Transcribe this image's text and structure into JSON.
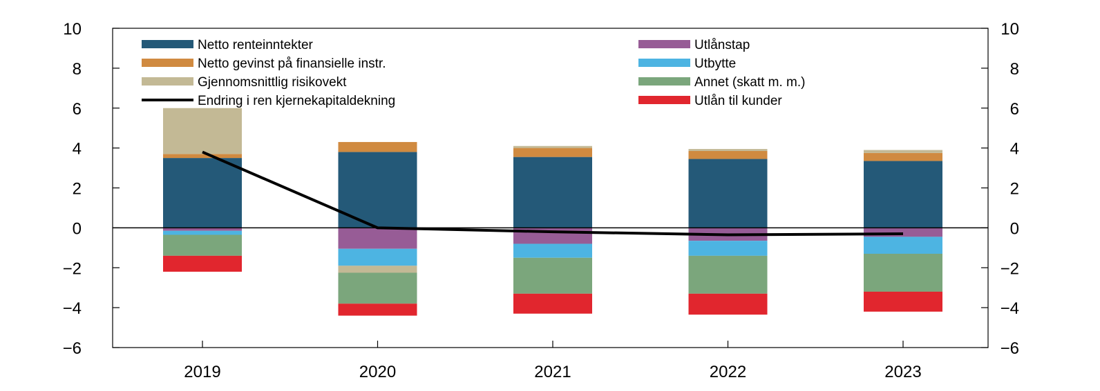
{
  "chart_data": {
    "type": "bar",
    "stacked": true,
    "categories": [
      "2019",
      "2020",
      "2021",
      "2022",
      "2023"
    ],
    "ylim": [
      -6,
      10
    ],
    "yticks": [
      -6,
      -4,
      -2,
      0,
      2,
      4,
      6,
      8,
      10
    ],
    "ytick_labels": [
      "−6",
      "−4",
      "−2",
      "0",
      "2",
      "4",
      "6",
      "8",
      "10"
    ],
    "secondary_y_axis": true,
    "grid": false,
    "legend_position": "top",
    "series": [
      {
        "name": "Netto renteinntekter",
        "color": "#245978",
        "values": [
          3.5,
          3.8,
          3.55,
          3.45,
          3.35
        ]
      },
      {
        "name": "Netto gevinst på finansielle instr.",
        "color": "#d08a40",
        "values": [
          0.2,
          0.5,
          0.45,
          0.4,
          0.4
        ]
      },
      {
        "name": "Gjennomsnittlig risikovekt",
        "color": "#c3b995",
        "values": [
          2.3,
          0.0,
          0.1,
          0.1,
          0.15
        ]
      },
      {
        "name": "Utlånstap",
        "color": "#975c96",
        "values": [
          -0.15,
          -1.05,
          -0.8,
          -0.65,
          -0.45
        ]
      },
      {
        "name": "Utbytte",
        "color": "#4db4e2",
        "values": [
          -0.2,
          -0.85,
          -0.7,
          -0.75,
          -0.85
        ]
      },
      {
        "name": "Gjennomsnittlig risikovekt (negativ)",
        "color": "#c3b995",
        "values": [
          0.0,
          -0.35,
          0.0,
          0.0,
          0.0
        ],
        "legend": false
      },
      {
        "name": "Annet (skatt m. m.)",
        "color": "#7ba67c",
        "values": [
          -1.05,
          -1.55,
          -1.8,
          -1.9,
          -1.9
        ]
      },
      {
        "name": "Utlån til kunder",
        "color": "#e1262e",
        "values": [
          -0.8,
          -0.6,
          -1.0,
          -1.05,
          -1.0
        ]
      }
    ],
    "line": {
      "name": "Endring i ren kjernekapitaldekning",
      "color": "#000000",
      "values": [
        3.8,
        0.0,
        -0.2,
        -0.35,
        -0.3
      ]
    },
    "legend": [
      {
        "label": "Netto renteinntekter",
        "color": "#245978",
        "kind": "bar"
      },
      {
        "label": "Netto gevinst på finansielle instr.",
        "color": "#d08a40",
        "kind": "bar"
      },
      {
        "label": "Gjennomsnittlig risikovekt",
        "color": "#c3b995",
        "kind": "bar"
      },
      {
        "label": "Endring i ren kjernekapitaldekning",
        "color": "#000000",
        "kind": "line"
      },
      {
        "label": "Utlånstap",
        "color": "#975c96",
        "kind": "bar"
      },
      {
        "label": "Utbytte",
        "color": "#4db4e2",
        "kind": "bar"
      },
      {
        "label": "Annet (skatt m. m.)",
        "color": "#7ba67c",
        "kind": "bar"
      },
      {
        "label": "Utlån til kunder",
        "color": "#e1262e",
        "kind": "bar"
      }
    ]
  }
}
